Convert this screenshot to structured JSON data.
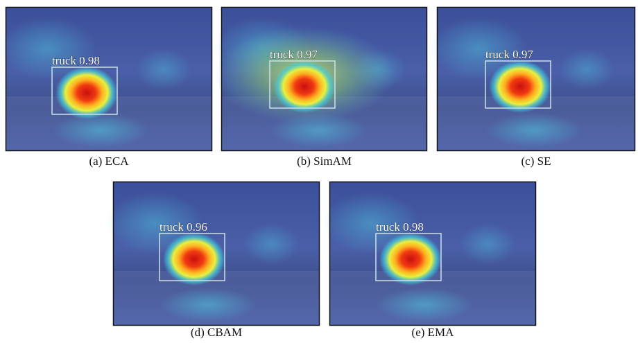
{
  "panels": [
    {
      "caption": "(a) ECA",
      "detection": "truck 0.98"
    },
    {
      "caption": "(b) SimAM",
      "detection": "truck 0.97"
    },
    {
      "caption": "(c) SE",
      "detection": "truck 0.97"
    },
    {
      "caption": "(d) CBAM",
      "detection": "truck 0.96"
    },
    {
      "caption": "(e) EMA",
      "detection": "truck 0.98"
    }
  ]
}
